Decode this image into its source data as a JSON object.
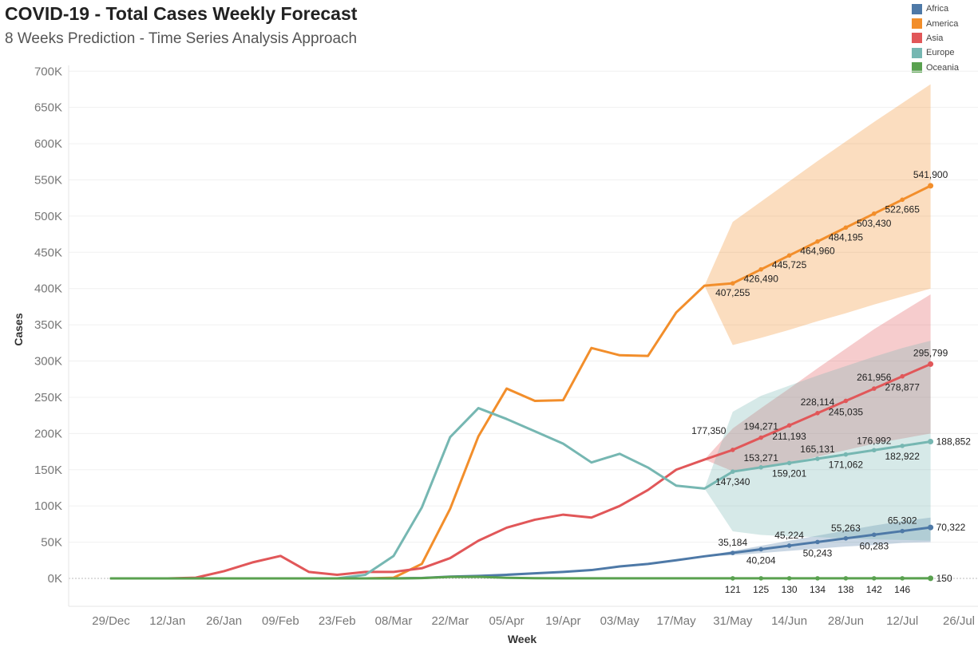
{
  "header": {
    "title": "COVID-19 - Total Cases Weekly Forecast",
    "subtitle": "8 Weeks Prediction - Time Series Analysis Approach"
  },
  "chart_data": {
    "type": "line",
    "title": "COVID-19 - Total Cases Weekly Forecast",
    "subtitle": "8 Weeks Prediction - Time Series Analysis Approach",
    "xlabel": "Week",
    "ylabel": "Cases",
    "ylim": [
      -10000,
      700000
    ],
    "y_ticks": [
      0,
      50000,
      100000,
      150000,
      200000,
      250000,
      300000,
      350000,
      400000,
      450000,
      500000,
      550000,
      600000,
      650000,
      700000
    ],
    "y_tick_labels": [
      "0K",
      "50K",
      "100K",
      "150K",
      "200K",
      "250K",
      "300K",
      "350K",
      "400K",
      "450K",
      "500K",
      "550K",
      "600K",
      "650K",
      "700K"
    ],
    "x_tick_labels": [
      "29/Dec",
      "12/Jan",
      "26/Jan",
      "09/Feb",
      "23/Feb",
      "08/Mar",
      "22/Mar",
      "05/Apr",
      "19/Apr",
      "03/May",
      "17/May",
      "31/May",
      "14/Jun",
      "28/Jun",
      "12/Jul",
      "26/Jul"
    ],
    "weeks": [
      "29/Dec",
      "05/Jan",
      "12/Jan",
      "19/Jan",
      "26/Jan",
      "02/Feb",
      "09/Feb",
      "16/Feb",
      "23/Feb",
      "01/Mar",
      "08/Mar",
      "15/Mar",
      "22/Mar",
      "29/Mar",
      "05/Apr",
      "12/Apr",
      "19/Apr",
      "26/Apr",
      "03/May",
      "10/May",
      "17/May",
      "24/May",
      "31/May",
      "07/Jun",
      "14/Jun",
      "21/Jun",
      "28/Jun",
      "05/Jul",
      "12/Jul",
      "19/Jul"
    ],
    "forecast_start_index": 21,
    "legend_position": "top-right",
    "grid": true,
    "series": [
      {
        "name": "Africa",
        "color": "#4e79a7",
        "values": [
          0,
          0,
          0,
          0,
          0,
          0,
          0,
          0,
          0,
          0,
          0,
          500,
          2500,
          3500,
          5000,
          7000,
          9000,
          11500,
          16500,
          20000,
          25000,
          30500,
          35184,
          40204,
          45224,
          50243,
          55263,
          60283,
          65302,
          70322
        ],
        "labels": {
          "22": "35,184",
          "23": "40,204",
          "24": "45,224",
          "25": "50,243",
          "26": "55,263",
          "27": "60,283",
          "28": "65,302",
          "29": "70,322"
        },
        "band_upper": [
          30500,
          38000,
          45000,
          52000,
          59000,
          66000,
          73000,
          79000,
          84000
        ],
        "band_lower": [
          30500,
          32000,
          35000,
          38000,
          41000,
          44000,
          46000,
          49000,
          50000
        ]
      },
      {
        "name": "America",
        "color": "#f28e2b",
        "values": [
          0,
          0,
          0,
          0,
          0,
          0,
          0,
          0,
          0,
          0,
          1000,
          20000,
          96000,
          196000,
          262000,
          245000,
          246000,
          318000,
          308000,
          307000,
          367000,
          404000,
          407255,
          426490,
          445725,
          464960,
          484195,
          503430,
          522665,
          541900
        ],
        "labels": {
          "22": "407,255",
          "23": "426,490",
          "24": "445,725",
          "25": "464,960",
          "26": "484,195",
          "27": "503,430",
          "28": "522,665",
          "29": "541,900"
        },
        "band_upper": [
          404000,
          492000,
          520000,
          548000,
          576000,
          603000,
          630000,
          656000,
          682000
        ],
        "band_lower": [
          404000,
          322000,
          332000,
          343000,
          355000,
          366000,
          378000,
          389000,
          400000
        ]
      },
      {
        "name": "Asia",
        "color": "#e15759",
        "values": [
          0,
          0,
          0,
          1000,
          10000,
          22000,
          31000,
          9000,
          5000,
          9000,
          9000,
          14000,
          28000,
          52000,
          70000,
          81000,
          88000,
          84000,
          100000,
          122000,
          150000,
          164000,
          177350,
          194271,
          211193,
          228114,
          245035,
          261956,
          278877,
          295799
        ],
        "labels": {
          "22": "177,350",
          "23": "194,271",
          "24": "211,193",
          "25": "228,114",
          "26": "245,035",
          "27": "261,956",
          "28": "278,877",
          "29": "295,799"
        },
        "band_upper": [
          164000,
          207000,
          235000,
          262000,
          290000,
          317000,
          344000,
          368000,
          392000
        ],
        "band_lower": [
          164000,
          148000,
          154000,
          160000,
          168000,
          177000,
          186000,
          193000,
          200000
        ]
      },
      {
        "name": "Europe",
        "color": "#76b7b2",
        "values": [
          0,
          0,
          0,
          0,
          0,
          0,
          0,
          0,
          0,
          5000,
          31000,
          98000,
          195000,
          235000,
          220000,
          203000,
          186000,
          160000,
          172000,
          153000,
          128000,
          124000,
          147340,
          153271,
          159201,
          165131,
          171062,
          176992,
          182922,
          188852
        ],
        "labels": {
          "22": "147,340",
          "23": "153,271",
          "24": "159,201",
          "25": "165,131",
          "26": "171,062",
          "27": "176,992",
          "28": "182,922",
          "29": "188,852"
        },
        "band_upper": [
          124000,
          230000,
          252000,
          266000,
          280000,
          293000,
          306000,
          318000,
          328000
        ],
        "band_lower": [
          124000,
          65000,
          60000,
          58000,
          57000,
          55000,
          54000,
          53000,
          52000
        ]
      },
      {
        "name": "Oceania",
        "color": "#59a14f",
        "values": [
          0,
          0,
          0,
          0,
          0,
          0,
          0,
          0,
          0,
          0,
          0,
          400,
          2000,
          2200,
          800,
          300,
          150,
          130,
          130,
          120,
          120,
          120,
          121,
          125,
          130,
          134,
          138,
          142,
          146,
          150
        ],
        "labels": {
          "22": "121",
          "23": "125",
          "24": "130",
          "25": "134",
          "26": "138",
          "27": "142",
          "28": "146",
          "29": "150"
        },
        "band_upper": [
          120,
          500,
          700,
          900,
          1100,
          1300,
          1500,
          1700,
          1900
        ],
        "band_lower": [
          120,
          0,
          0,
          0,
          0,
          0,
          0,
          0,
          0
        ]
      }
    ]
  }
}
